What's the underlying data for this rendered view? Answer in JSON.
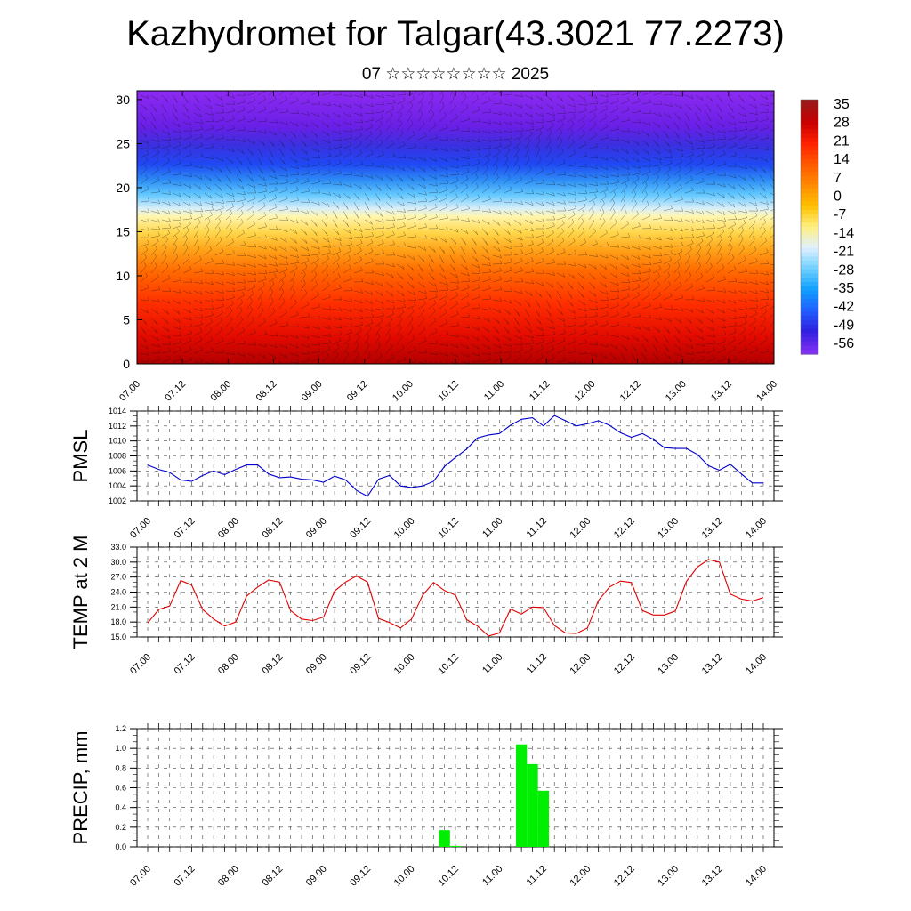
{
  "header": {
    "title": "Kazhydromet for Talgar(43.3021 77.2273)",
    "subtitle": "07 ☆☆☆☆☆☆☆☆ 2025"
  },
  "colors": {
    "pmsl_line": "#0000cc",
    "temp_line": "#e00000",
    "precip_bar": "#00ee00",
    "colorbar": [
      "#9a1a1a",
      "#c80000",
      "#ff2000",
      "#ff5a00",
      "#ff8a00",
      "#ffc000",
      "#fff080",
      "#e0f0ff",
      "#70d0ff",
      "#10a0ff",
      "#2060ff",
      "#3020e0",
      "#8030f0"
    ]
  },
  "time_axis": [
    "07.00",
    "07.12",
    "08.00",
    "08.12",
    "09.00",
    "09.12",
    "10.00",
    "10.12",
    "11.00",
    "11.12",
    "12.00",
    "12.12",
    "13.00",
    "13.12",
    "14.00"
  ],
  "chart_data": [
    {
      "type": "heatmap",
      "name": "cross-section",
      "title": "",
      "y_ticks": [
        "0",
        "5",
        "10",
        "15",
        "20",
        "25",
        "30"
      ],
      "ylim": [
        0,
        31
      ],
      "colorbar_labels": [
        "35",
        "28",
        "21",
        "14",
        "7",
        "0",
        "-7",
        "-14",
        "-21",
        "-28",
        "-35",
        "-42",
        "-49",
        "-56"
      ],
      "z_min": -56,
      "z_max": 35,
      "overlay": "wind barbs"
    },
    {
      "type": "line",
      "ylabel": "PMSL",
      "ylim": [
        1002,
        1014
      ],
      "y_ticks": [
        "1002",
        "1004",
        "1006",
        "1008",
        "1010",
        "1012",
        "1014"
      ],
      "x_step_hours": 3,
      "values": [
        1006.8,
        1006.2,
        1005.8,
        1004.8,
        1004.6,
        1005.4,
        1006.0,
        1005.5,
        1006.2,
        1006.8,
        1006.8,
        1005.6,
        1005.1,
        1005.2,
        1004.9,
        1004.8,
        1004.5,
        1005.3,
        1004.8,
        1003.4,
        1002.6,
        1004.9,
        1005.4,
        1004.0,
        1003.8,
        1004.0,
        1004.6,
        1006.6,
        1007.8,
        1008.9,
        1010.4,
        1010.8,
        1011.0,
        1012.1,
        1012.9,
        1013.1,
        1012.0,
        1013.4,
        1012.7,
        1012.0,
        1012.3,
        1012.7,
        1012.1,
        1011.1,
        1010.5,
        1011.0,
        1010.2,
        1009.1,
        1009.0,
        1009.0,
        1008.2,
        1006.7,
        1006.1,
        1006.9,
        1005.6,
        1004.4,
        1004.4
      ]
    },
    {
      "type": "line",
      "ylabel": "TEMP at 2 M",
      "ylim": [
        15,
        33
      ],
      "y_ticks": [
        "15.0",
        "18.0",
        "21.0",
        "24.0",
        "27.0",
        "30.0",
        "33.0"
      ],
      "x_step_hours": 3,
      "values": [
        17.8,
        20.5,
        21.2,
        26.3,
        25.4,
        20.5,
        18.6,
        17.2,
        18.0,
        23.2,
        25.0,
        26.4,
        26.0,
        20.3,
        18.6,
        18.3,
        19.0,
        24.2,
        26.0,
        27.2,
        26.0,
        18.7,
        17.9,
        16.8,
        18.6,
        23.3,
        25.9,
        24.3,
        23.4,
        18.5,
        17.2,
        15.2,
        15.8,
        20.6,
        19.6,
        21.0,
        20.9,
        17.3,
        15.8,
        15.7,
        16.8,
        22.3,
        25.0,
        26.2,
        25.9,
        20.3,
        19.4,
        19.4,
        20.2,
        26.1,
        29.0,
        30.5,
        30.0,
        23.6,
        22.6,
        22.2,
        22.9
      ]
    },
    {
      "type": "bar",
      "ylabel": "PRECIP, mm",
      "ylim": [
        0,
        1.2
      ],
      "y_ticks": [
        "0.0",
        "0.2",
        "0.4",
        "0.6",
        "0.8",
        "1.0",
        "1.2"
      ],
      "x_step_hours": 3,
      "values": [
        0,
        0,
        0,
        0,
        0,
        0,
        0,
        0,
        0,
        0,
        0,
        0,
        0,
        0,
        0,
        0,
        0,
        0,
        0,
        0,
        0,
        0,
        0,
        0,
        0,
        0,
        0,
        0.17,
        0.01,
        0,
        0,
        0,
        0,
        0,
        1.04,
        0.84,
        0.57,
        0,
        0,
        0,
        0,
        0,
        0,
        0,
        0,
        0,
        0,
        0,
        0,
        0,
        0,
        0,
        0,
        0,
        0,
        0,
        0
      ]
    }
  ]
}
